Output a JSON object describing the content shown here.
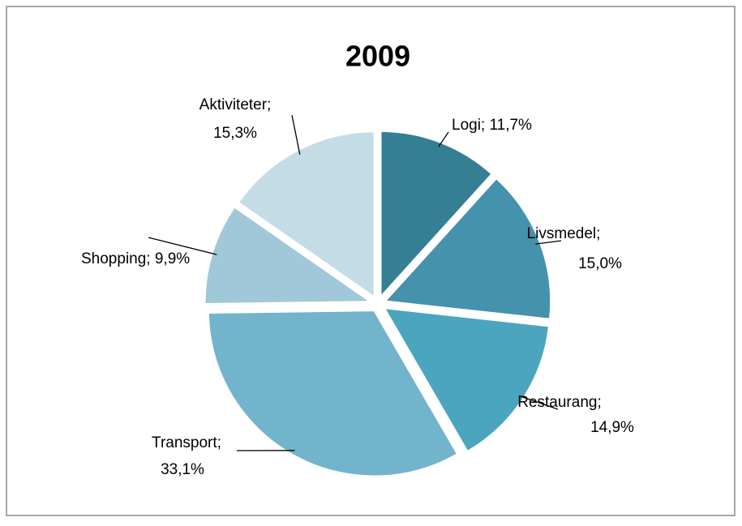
{
  "chart_data": {
    "type": "pie",
    "title": "2009",
    "categories": [
      "Logi;",
      "Livsmedel;",
      "Restaurang;",
      "Transport;",
      "Shopping;",
      "Aktiviteter;"
    ],
    "values": [
      11.7,
      15.0,
      14.9,
      33.1,
      9.9,
      15.3
    ],
    "value_labels": [
      "11,7%",
      "15,0%",
      "14,9%",
      "33,1%",
      "9,9%",
      "15,3%"
    ],
    "colors": [
      "#357f94",
      "#4592ad",
      "#4ba5be",
      "#71b4cc",
      "#a0c8d8",
      "#c3dce6"
    ]
  }
}
